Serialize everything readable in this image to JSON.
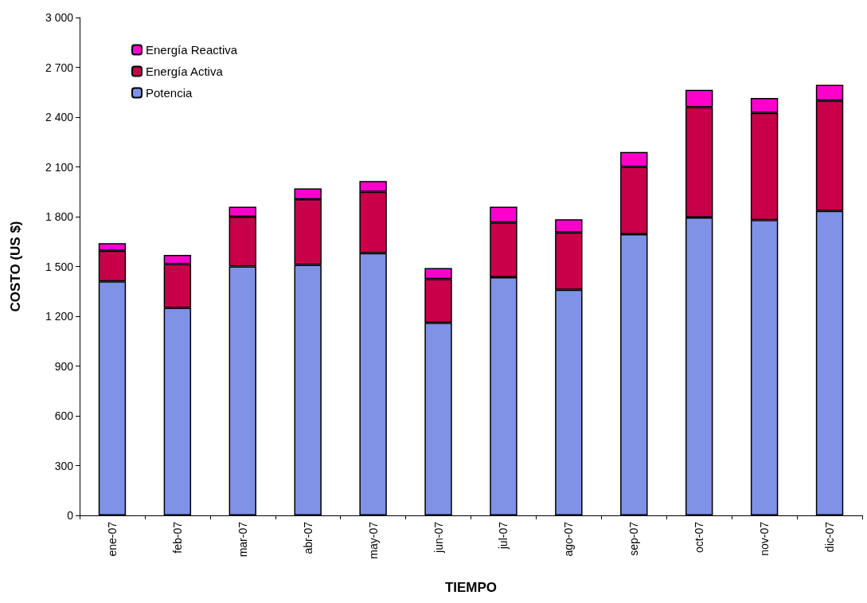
{
  "chart_data": {
    "type": "bar",
    "stacked": true,
    "xlabel": "TIEMPO",
    "ylabel": "COSTO (US $)",
    "categories": [
      "ene-07",
      "feb-07",
      "mar-07",
      "abr-07",
      "may-07",
      "jun-07",
      "jul-07",
      "ago-07",
      "sep-07",
      "oct-07",
      "nov-07",
      "dic-07"
    ],
    "series": [
      {
        "name": "Potencia",
        "color": "#7f92e6",
        "values": [
          1410,
          1250,
          1500,
          1510,
          1580,
          1160,
          1435,
          1360,
          1695,
          1795,
          1780,
          1835
        ]
      },
      {
        "name": "Energía Activa",
        "color": "#c8004a",
        "values": [
          185,
          265,
          300,
          395,
          370,
          265,
          330,
          345,
          405,
          665,
          645,
          665
        ]
      },
      {
        "name": "Energía Reactiva",
        "color": "#ff00cc",
        "values": [
          45,
          55,
          60,
          65,
          65,
          65,
          95,
          80,
          90,
          105,
          90,
          95
        ]
      }
    ],
    "ylim": [
      0,
      3000
    ],
    "yticks": [
      0,
      300,
      600,
      900,
      {
        "value": 1200,
        "label": "1 200"
      },
      {
        "value": 1500,
        "label": "1 500"
      },
      {
        "value": 1800,
        "label": "1 800"
      },
      {
        "value": 2100,
        "label": "2 100"
      },
      {
        "value": 2400,
        "label": "2 400"
      },
      {
        "value": 2700,
        "label": "2 700"
      },
      {
        "value": 3000,
        "label": "3 000"
      }
    ],
    "grid": false,
    "legend": "top left"
  }
}
